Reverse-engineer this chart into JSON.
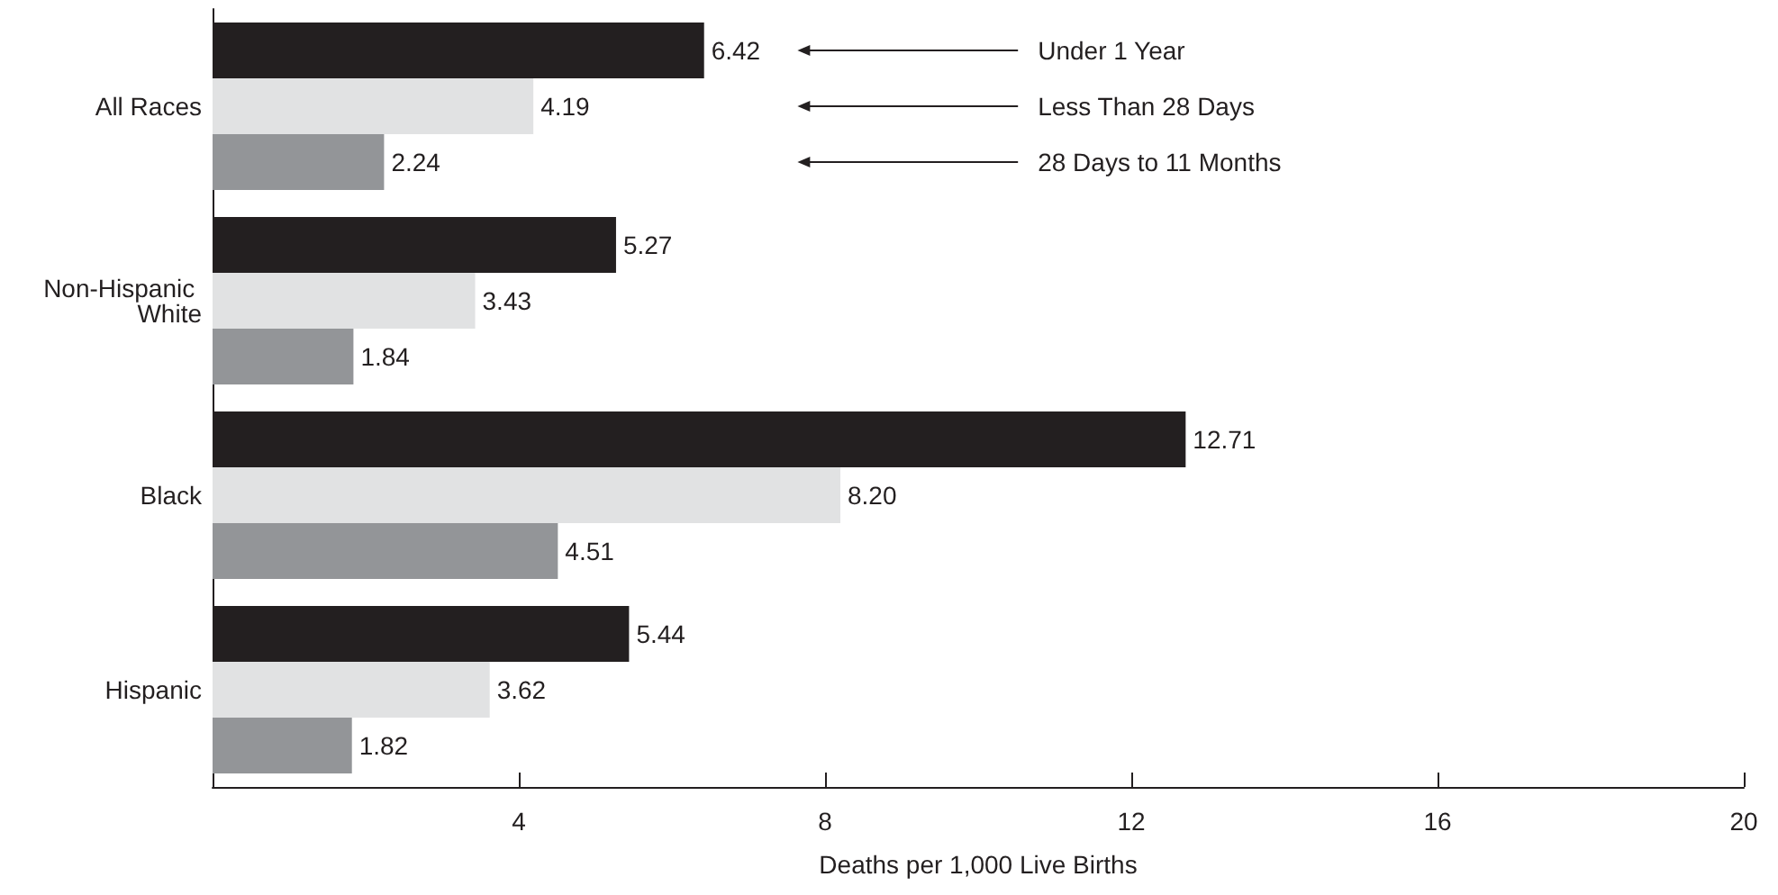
{
  "chart_data": {
    "type": "bar",
    "orientation": "horizontal",
    "xlabel": "Deaths per 1,000 Live Births",
    "categories": [
      "All Races",
      "Non-Hispanic White",
      "Black",
      "Hispanic"
    ],
    "series": [
      {
        "name": "Under 1 Year",
        "color": "#231f20",
        "values": [
          6.42,
          5.27,
          12.71,
          5.44
        ],
        "value_labels": [
          "6.42",
          "5.27",
          "12.71",
          "5.44"
        ]
      },
      {
        "name": "Less Than 28 Days",
        "color": "#e1e2e3",
        "values": [
          4.19,
          3.43,
          8.2,
          3.62
        ],
        "value_labels": [
          "4.19",
          "3.43",
          "8.20",
          "3.62"
        ]
      },
      {
        "name": "28 Days to 11 Months",
        "color": "#939598",
        "values": [
          2.24,
          1.84,
          4.51,
          1.82
        ],
        "value_labels": [
          "2.24",
          "1.84",
          "4.51",
          "1.82"
        ]
      }
    ],
    "xlim": [
      0,
      20
    ],
    "xticks": [
      {
        "value": 0,
        "label": null
      },
      4,
      8,
      12,
      16,
      20
    ],
    "grid": false,
    "legend": false
  }
}
